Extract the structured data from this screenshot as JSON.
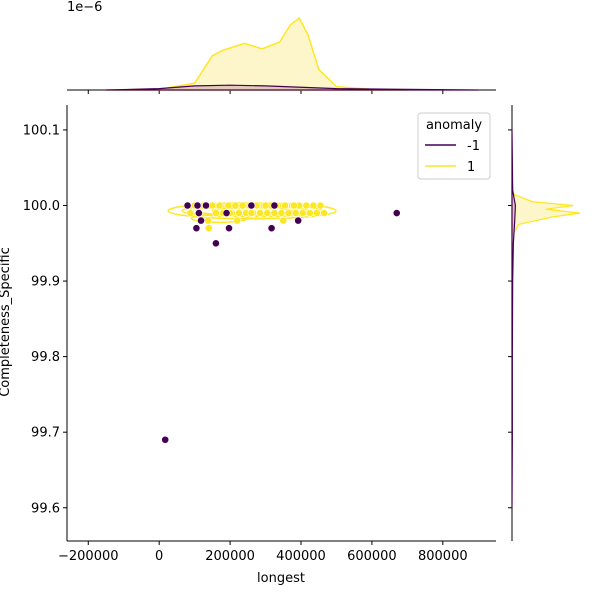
{
  "chart_data": {
    "type": "scatter",
    "title": "",
    "xlabel": "longest",
    "ylabel": "Completeness_Specific",
    "xlim": [
      -260000,
      950000
    ],
    "ylim": [
      99.556,
      100.133
    ],
    "x_ticks": [
      -200000,
      0,
      200000,
      400000,
      600000,
      800000
    ],
    "x_tick_labels": [
      "−200000",
      "0",
      "200000",
      "400000",
      "600000",
      "800000"
    ],
    "y_ticks": [
      99.6,
      99.7,
      99.8,
      99.9,
      100.0,
      100.1
    ],
    "y_tick_labels": [
      "99.6",
      "99.7",
      "99.8",
      "99.9",
      "100.0",
      "100.1"
    ],
    "top_marginal_offset_label": "1e−6",
    "grid": false,
    "legend": {
      "title": "anomaly",
      "position": "top-right",
      "entries": [
        {
          "label": "-1",
          "color": "#440154"
        },
        {
          "label": "1",
          "color": "#fde725"
        }
      ]
    },
    "colors": {
      "anomaly_neg": "#440154",
      "anomaly_pos": "#fde725",
      "anomaly_pos_fill": "#fdf5c4",
      "anomaly_neg_fill": "#d7bfb8"
    },
    "series": [
      {
        "name": "1",
        "color": "#fde725",
        "points": [
          [
            88000,
            99.99
          ],
          [
            100000,
            100.0
          ],
          [
            112000,
            99.99
          ],
          [
            125000,
            100.0
          ],
          [
            138000,
            99.98
          ],
          [
            150000,
            100.0
          ],
          [
            160000,
            99.99
          ],
          [
            170000,
            100.0
          ],
          [
            180000,
            99.99
          ],
          [
            195000,
            100.0
          ],
          [
            205000,
            99.99
          ],
          [
            215000,
            100.0
          ],
          [
            225000,
            99.99
          ],
          [
            235000,
            100.0
          ],
          [
            245000,
            99.99
          ],
          [
            255000,
            100.0
          ],
          [
            265000,
            99.99
          ],
          [
            275000,
            100.0
          ],
          [
            285000,
            99.99
          ],
          [
            295000,
            100.0
          ],
          [
            305000,
            99.99
          ],
          [
            315000,
            100.0
          ],
          [
            325000,
            99.99
          ],
          [
            335000,
            100.0
          ],
          [
            345000,
            99.99
          ],
          [
            355000,
            100.0
          ],
          [
            365000,
            99.99
          ],
          [
            375000,
            100.0
          ],
          [
            385000,
            99.99
          ],
          [
            395000,
            100.0
          ],
          [
            405000,
            99.99
          ],
          [
            415000,
            100.0
          ],
          [
            425000,
            99.99
          ],
          [
            435000,
            100.0
          ],
          [
            445000,
            99.99
          ],
          [
            455000,
            100.0
          ],
          [
            465000,
            99.99
          ],
          [
            140000,
            99.97
          ],
          [
            220000,
            99.98
          ],
          [
            300000,
            100.0
          ],
          [
            330000,
            100.0
          ],
          [
            350000,
            99.98
          ],
          [
            260000,
            99.99
          ],
          [
            380000,
            100.0
          ],
          [
            200000,
            99.99
          ]
        ]
      },
      {
        "name": "-1",
        "color": "#440154",
        "points": [
          [
            80000,
            100.0
          ],
          [
            108000,
            100.0
          ],
          [
            132000,
            100.0
          ],
          [
            112000,
            99.99
          ],
          [
            118000,
            99.98
          ],
          [
            105000,
            99.97
          ],
          [
            190000,
            99.99
          ],
          [
            197000,
            99.97
          ],
          [
            160000,
            99.95
          ],
          [
            260000,
            100.0
          ],
          [
            325000,
            100.0
          ],
          [
            392000,
            99.98
          ],
          [
            317000,
            99.97
          ],
          [
            670000,
            99.99
          ],
          [
            17000,
            99.69
          ]
        ]
      }
    ],
    "density_x": {
      "anomaly_1_peak_x": [
        [
          -150000,
          0.0
        ],
        [
          0,
          0.01
        ],
        [
          100000,
          0.1
        ],
        [
          150000,
          0.5
        ],
        [
          180000,
          0.58
        ],
        [
          240000,
          0.68
        ],
        [
          290000,
          0.6
        ],
        [
          340000,
          0.7
        ],
        [
          370000,
          0.95
        ],
        [
          395000,
          1.05
        ],
        [
          420000,
          0.8
        ],
        [
          450000,
          0.3
        ],
        [
          500000,
          0.05
        ],
        [
          600000,
          0.01
        ],
        [
          700000,
          0.0
        ]
      ],
      "anomaly_neg1_peak_x": [
        [
          -150000,
          0.0
        ],
        [
          0,
          0.02
        ],
        [
          100000,
          0.06
        ],
        [
          200000,
          0.07
        ],
        [
          300000,
          0.06
        ],
        [
          400000,
          0.04
        ],
        [
          500000,
          0.02
        ],
        [
          700000,
          0.01
        ],
        [
          900000,
          0.0
        ]
      ]
    },
    "density_y": {
      "anomaly_1": [
        [
          99.96,
          0.0
        ],
        [
          99.975,
          0.1
        ],
        [
          99.985,
          0.6
        ],
        [
          99.99,
          1.0
        ],
        [
          99.995,
          0.5
        ],
        [
          100.0,
          0.9
        ],
        [
          100.005,
          0.3
        ],
        [
          100.015,
          0.02
        ],
        [
          100.03,
          0.0
        ]
      ],
      "anomaly_neg1": [
        [
          99.6,
          0.0
        ],
        [
          99.69,
          0.005
        ],
        [
          99.8,
          0.005
        ],
        [
          99.9,
          0.01
        ],
        [
          99.95,
          0.02
        ],
        [
          99.98,
          0.04
        ],
        [
          100.0,
          0.05
        ],
        [
          100.02,
          0.01
        ],
        [
          100.1,
          0.0
        ]
      ]
    }
  }
}
